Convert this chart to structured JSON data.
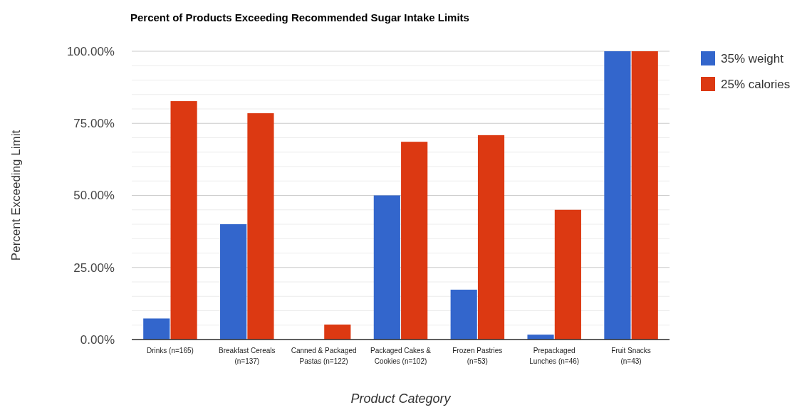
{
  "chart_data": {
    "type": "bar",
    "title": "Percent of Products Exceeding Recommended Sugar Intake Limits",
    "xlabel": "Product Category",
    "ylabel": "Percent Exceeding Limit",
    "categories": [
      "Drinks (n=165)",
      "Breakfast Cereals (n=137)",
      "Canned & Packaged Pastas (n=122)",
      "Packaged Cakes & Cookies (n=102)",
      "Frozen Pastries (n=53)",
      "Prepackaged Lunches (n=46)",
      "Fruit Snacks (n=43)"
    ],
    "series": [
      {
        "name": "35% weight",
        "color": "#3366cc",
        "values": [
          7.3,
          40,
          0,
          50,
          17.3,
          1.7,
          100
        ]
      },
      {
        "name": "25% calories",
        "color": "#dc3912",
        "values": [
          82.7,
          78.5,
          5.2,
          68.6,
          70.9,
          45,
          100
        ]
      }
    ],
    "ylim": [
      0,
      100
    ],
    "yticks": [
      {
        "value": 0,
        "label": "0.00%"
      },
      {
        "value": 5,
        "label": null
      },
      {
        "value": 10,
        "label": null
      },
      {
        "value": 15,
        "label": null
      },
      {
        "value": 20,
        "label": null
      },
      {
        "value": 25,
        "label": "25.00%"
      },
      {
        "value": 30,
        "label": null
      },
      {
        "value": 35,
        "label": null
      },
      {
        "value": 40,
        "label": null
      },
      {
        "value": 45,
        "label": null
      },
      {
        "value": 50,
        "label": "50.00%"
      },
      {
        "value": 55,
        "label": null
      },
      {
        "value": 60,
        "label": null
      },
      {
        "value": 65,
        "label": null
      },
      {
        "value": 70,
        "label": null
      },
      {
        "value": 75,
        "label": "75.00%"
      },
      {
        "value": 80,
        "label": null
      },
      {
        "value": 85,
        "label": null
      },
      {
        "value": 90,
        "label": null
      },
      {
        "value": 95,
        "label": null
      },
      {
        "value": 100,
        "label": "100.00%"
      }
    ],
    "grid": true,
    "legend": "right"
  }
}
